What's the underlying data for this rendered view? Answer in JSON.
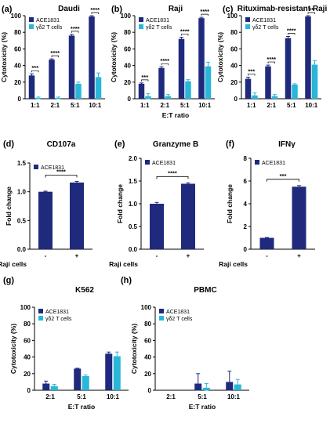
{
  "colors": {
    "ace1831": "#1f2a7c",
    "gd_t_cells": "#29b6d9"
  },
  "chart_data": [
    {
      "id": "a",
      "panel_label": "(a)",
      "type": "bar",
      "title": "Daudi",
      "xlabel": "",
      "ylabel": "Cytotoxicity (%)",
      "ylim": [
        0,
        100
      ],
      "yticks": [
        0,
        20,
        40,
        60,
        80,
        100
      ],
      "categories": [
        "1:1",
        "2:1",
        "5:1",
        "10:1"
      ],
      "series": [
        {
          "name": "ACE1831",
          "color": "#1f2a7c",
          "values": [
            28,
            47,
            76,
            99
          ],
          "errors": [
            2,
            1,
            1.5,
            1
          ]
        },
        {
          "name": "γδ2 T cells",
          "color": "#29b6d9",
          "values": [
            1,
            1,
            18,
            26
          ],
          "errors": [
            1,
            1,
            2,
            5
          ]
        }
      ],
      "significance": [
        "***",
        "****",
        "****",
        "****"
      ],
      "legend": "top-left",
      "grid": false
    },
    {
      "id": "b",
      "panel_label": "(b)",
      "type": "bar",
      "title": "Raji",
      "xlabel": "",
      "ylabel": "Cytotoxicity (%)",
      "ylim": [
        0,
        100
      ],
      "yticks": [
        0,
        20,
        40,
        60,
        80,
        100
      ],
      "categories": [
        "1:1",
        "2:1",
        "5:1",
        "10:1"
      ],
      "series": [
        {
          "name": "ACE1831",
          "color": "#1f2a7c",
          "values": [
            18,
            37,
            72,
            97
          ],
          "errors": [
            1,
            1.5,
            2,
            1
          ]
        },
        {
          "name": "γδ2 T cells",
          "color": "#29b6d9",
          "values": [
            3,
            3,
            21,
            39
          ],
          "errors": [
            3,
            2,
            2,
            5
          ]
        }
      ],
      "significance": [
        "***",
        "****",
        "****",
        "****"
      ],
      "legend": "top-left",
      "grid": false
    },
    {
      "id": "c",
      "panel_label": "(c)",
      "type": "bar",
      "title": "Rituximab-resistant Raji",
      "xlabel": "E:T ratio",
      "ylabel": "Cytotoxicity (%)",
      "ylim": [
        0,
        100
      ],
      "yticks": [
        0,
        20,
        40,
        60,
        80,
        100
      ],
      "categories": [
        "1:1",
        "2:1",
        "5:1",
        "10:1"
      ],
      "series": [
        {
          "name": "ACE1831",
          "color": "#1f2a7c",
          "values": [
            24,
            39,
            73,
            99
          ],
          "errors": [
            2,
            1.5,
            2,
            1
          ]
        },
        {
          "name": "γδ2 T cells",
          "color": "#29b6d9",
          "values": [
            4,
            3,
            17,
            41
          ],
          "errors": [
            3,
            2,
            1,
            5
          ]
        }
      ],
      "significance": [
        "***",
        "****",
        "****",
        "**"
      ],
      "legend": "top-left",
      "grid": false
    },
    {
      "id": "d",
      "panel_label": "(d)",
      "type": "bar",
      "title": "CD107a",
      "xlabel": "Raji cells",
      "ylabel": "Fold change",
      "ylim": [
        0,
        1.5
      ],
      "yticks": [
        0,
        0.5,
        1.0,
        1.5
      ],
      "ytick_labels": [
        "0.0",
        "0.5",
        "1.0",
        "1.5"
      ],
      "categories": [
        "-",
        "+"
      ],
      "series": [
        {
          "name": "ACE1831",
          "color": "#1f2a7c",
          "values": [
            1.0,
            1.16
          ],
          "errors": [
            0.01,
            0.02
          ]
        }
      ],
      "significance": [
        "****"
      ],
      "legend": "top-left",
      "grid": false
    },
    {
      "id": "e",
      "panel_label": "(e)",
      "type": "bar",
      "title": "Granzyme B",
      "xlabel": "Raji cells",
      "ylabel": "Fold change",
      "ylim": [
        0,
        2.0
      ],
      "yticks": [
        0,
        0.5,
        1.0,
        1.5,
        2.0
      ],
      "ytick_labels": [
        "0.0",
        "0.5",
        "1.0",
        "1.5",
        "2.0"
      ],
      "categories": [
        "-",
        "+"
      ],
      "series": [
        {
          "name": "ACE1831",
          "color": "#1f2a7c",
          "values": [
            1.0,
            1.44
          ],
          "errors": [
            0.03,
            0.02
          ]
        }
      ],
      "significance": [
        "****"
      ],
      "legend": "top-left",
      "grid": false
    },
    {
      "id": "f",
      "panel_label": "(f)",
      "type": "bar",
      "title": "IFNγ",
      "xlabel": "Raji cells",
      "ylabel": "Fold change",
      "ylim": [
        0,
        8
      ],
      "yticks": [
        0,
        2,
        4,
        6,
        8
      ],
      "ytick_labels": [
        "0",
        "2",
        "4",
        "6",
        "8"
      ],
      "categories": [
        "-",
        "+"
      ],
      "series": [
        {
          "name": "ACE1831",
          "color": "#1f2a7c",
          "values": [
            1.0,
            5.5
          ],
          "errors": [
            0.03,
            0.1
          ]
        }
      ],
      "significance": [
        "***"
      ],
      "legend": "top-left",
      "grid": false
    },
    {
      "id": "g",
      "panel_label": "(g)",
      "type": "bar",
      "title": "K562",
      "xlabel": "E:T ratio",
      "ylabel": "Cytotoxicity (%)",
      "ylim": [
        0,
        100
      ],
      "yticks": [
        0,
        20,
        40,
        60,
        80,
        100
      ],
      "categories": [
        "2:1",
        "5:1",
        "10:1"
      ],
      "series": [
        {
          "name": "ACE1831",
          "color": "#1f2a7c",
          "values": [
            8,
            26,
            44
          ],
          "errors": [
            3,
            0.5,
            2
          ]
        },
        {
          "name": "γδ2 T cells",
          "color": "#29b6d9",
          "values": [
            5,
            17,
            41
          ],
          "errors": [
            2,
            1.5,
            5
          ]
        }
      ],
      "significance": [],
      "legend": "top-left",
      "grid": false
    },
    {
      "id": "h",
      "panel_label": "(h)",
      "type": "bar",
      "title": "PBMC",
      "xlabel": "E:T ratio",
      "ylabel": "Cytotoxicity (%)",
      "ylim": [
        0,
        100
      ],
      "yticks": [
        0,
        20,
        40,
        60,
        80,
        100
      ],
      "categories": [
        "2:1",
        "5:1",
        "10:1"
      ],
      "series": [
        {
          "name": "ACE1831",
          "color": "#1f2a7c",
          "values": [
            0,
            8,
            10
          ],
          "errors": [
            0,
            12,
            13
          ]
        },
        {
          "name": "γδ2 T cells",
          "color": "#29b6d9",
          "values": [
            0,
            3,
            7
          ],
          "errors": [
            0,
            5,
            6
          ]
        }
      ],
      "significance": [],
      "legend": "top-left",
      "grid": false
    }
  ]
}
